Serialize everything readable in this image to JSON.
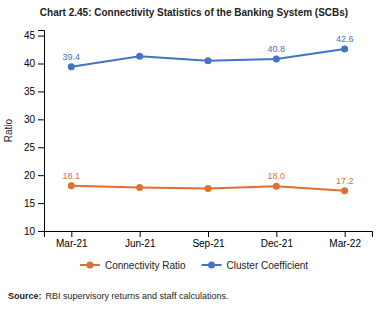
{
  "chart_data": {
    "type": "line",
    "title": "Chart 2.45: Connectivity Statistics of the Banking System (SCBs)",
    "ylabel": "Ratio",
    "categories": [
      "Mar-21",
      "Jun-21",
      "Sep-21",
      "Dec-21",
      "Mar-22"
    ],
    "series": [
      {
        "name": "Connectivity Ratio",
        "color": "#e07030",
        "marker": "circle",
        "data_labels": true,
        "values": [
          18.1,
          17.8,
          17.6,
          18.0,
          17.2
        ],
        "value_labels": [
          "18.1",
          null,
          null,
          "18.0",
          "17.2"
        ]
      },
      {
        "name": "Cluster Coefficient",
        "color": "#4472c4",
        "marker": "circle",
        "data_labels": true,
        "values": [
          39.4,
          41.3,
          40.5,
          40.8,
          42.6
        ],
        "value_labels": [
          "39.4",
          null,
          null,
          "40.8",
          "42.6"
        ]
      }
    ],
    "ylim": [
      10,
      46
    ],
    "yticks": [
      10,
      15,
      20,
      25,
      30,
      35,
      40,
      45
    ],
    "grid": false,
    "legend": "bottom",
    "source": {
      "label": "Source:",
      "text": "RBI supervisory returns and staff calculations."
    }
  }
}
